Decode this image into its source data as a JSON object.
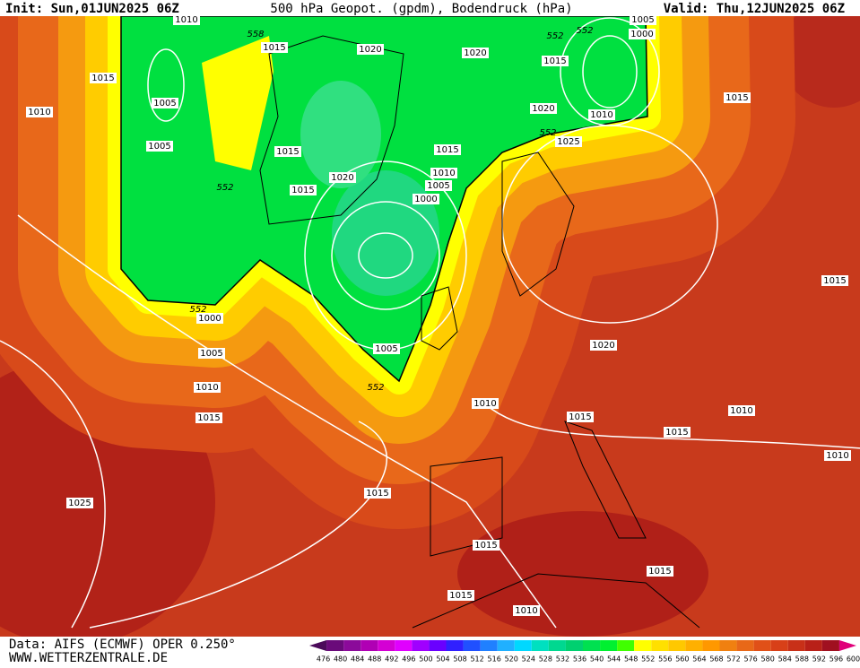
{
  "header": {
    "init": "Init: Sun,01JUN2025 06Z",
    "title": "500 hPa Geopot. (gpdm), Bodendruck (hPa)",
    "valid": "Valid: Thu,12JUN2025 06Z"
  },
  "footer": {
    "data": "Data: AIFS (ECMWF) OPER 0.250°",
    "site": "WWW.WETTERZENTRALE.DE"
  },
  "legend": {
    "levels": [
      476,
      480,
      484,
      488,
      492,
      496,
      500,
      504,
      508,
      512,
      516,
      520,
      524,
      528,
      532,
      536,
      540,
      544,
      548,
      552,
      556,
      560,
      564,
      568,
      572,
      576,
      580,
      584,
      588,
      592,
      596,
      600
    ],
    "colors": [
      "#4b0a5a",
      "#6a0a7a",
      "#8b0a9a",
      "#b000b4",
      "#d400d4",
      "#e000ff",
      "#a000ff",
      "#6a00ff",
      "#3020ff",
      "#2050ff",
      "#2080ff",
      "#20b0ff",
      "#00d8ff",
      "#00e0c0",
      "#00d890",
      "#00d070",
      "#00e050",
      "#00f030",
      "#40ff00",
      "#ffff00",
      "#ffe000",
      "#ffc800",
      "#ffb000",
      "#ff9800",
      "#f08010",
      "#e86818",
      "#e05018",
      "#d84018",
      "#c83018",
      "#b82018",
      "#a01020",
      "#e0007a"
    ]
  },
  "labels": [
    "1010",
    "558",
    "1015",
    "1020",
    "1020",
    "552",
    "552",
    "1005",
    "1000",
    "1015",
    "1010",
    "1005",
    "1015",
    "1010",
    "1020",
    "1015",
    "1005",
    "1015",
    "1015",
    "552",
    "1025",
    "552",
    "1015",
    "1020",
    "1010",
    "1005",
    "1000",
    "552",
    "1000",
    "1005",
    "1010",
    "1015",
    "1005",
    "552",
    "1010",
    "1015",
    "1015",
    "1010",
    "1020",
    "1015",
    "1010",
    "1025",
    "1015",
    "1015",
    "1015",
    "1015",
    "1010"
  ]
}
